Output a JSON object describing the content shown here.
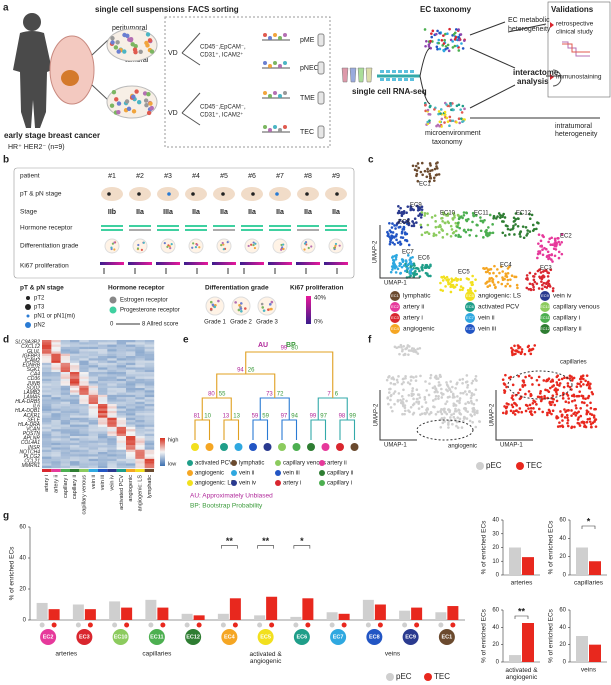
{
  "panel_labels": {
    "a": "a",
    "b": "b",
    "c": "c",
    "d": "d",
    "e": "e",
    "f": "f",
    "g": "g"
  },
  "panel_a": {
    "suspensions_title": "single cell suspensions",
    "peritumoral": "peritumoral",
    "tumoral": "tumoral",
    "cohort": "early stage breast cancer",
    "receptor_status": "HR⁺ HER2⁻ (n=9)",
    "facs_title": "FACS sorting",
    "vd": [
      "VD",
      "VD"
    ],
    "markers": [
      [
        "CD45⁻,EpCAM⁻,",
        "CD31⁺, ICAM2⁺"
      ],
      [
        "CD45⁻,EpCAM⁻,",
        "CD31⁺, ICAM2⁺"
      ]
    ],
    "fractions": [
      "pME",
      "pNEC",
      "TME",
      "TEC"
    ],
    "sequencing": "single cell RNA-seq",
    "taxonomy_title": "EC taxonomy",
    "metabolic": [
      "EC metabolic",
      "heterogeneity"
    ],
    "interactome": [
      "interactome",
      "analysis"
    ],
    "microenvironment": [
      "microenvironment",
      "taxonomy"
    ],
    "intratumoral": [
      "intratumoral",
      "heterogeneity"
    ],
    "validations_title": "Validations",
    "clinical": [
      "retrospective",
      "clinical study"
    ],
    "immunostaining": "immunostaining"
  },
  "panel_b": {
    "row_labels": [
      "patient",
      "pT & pN stage",
      "Stage",
      "Hormone receptor",
      "Differentiation grade",
      "Ki67 proliferation"
    ],
    "patients": [
      "#1",
      "#2",
      "#3",
      "#4",
      "#5",
      "#6",
      "#7",
      "#8",
      "#9"
    ],
    "stages": [
      "IIb",
      "IIa",
      "IIIa",
      "IIa",
      "IIa",
      "IIa",
      "IIa",
      "IIa",
      "IIa"
    ],
    "legend": {
      "stage_title": "pT & pN stage",
      "stage_items": [
        "pT2",
        "pT3",
        "pN1 or pN1(mi)",
        "pN2"
      ],
      "receptor_title": "Hormone receptor",
      "receptor_items": [
        "Estrogen receptor",
        "Progesterone receptor"
      ],
      "allred_min": "0",
      "allred_max": "8 Allred score",
      "grade_title": "Differentiation grade",
      "grades": [
        "Grade 1",
        "Grade 2",
        "Grade 3"
      ],
      "ki67_title": "Ki67 proliferation",
      "ki67_max": "40%",
      "ki67_min": "0%"
    }
  },
  "panel_c": {
    "umap_y": "UMAP-2",
    "umap_x": "UMAP-1",
    "cluster_labels": [
      "EC1",
      "EC2",
      "EC3",
      "EC4",
      "EC5",
      "EC6",
      "EC7",
      "EC8",
      "EC9",
      "EC10",
      "EC11",
      "EC12"
    ],
    "legend": [
      {
        "id": "EC1",
        "name": "lymphatic",
        "color": "#6b4a2e"
      },
      {
        "id": "EC2",
        "name": "artery ii",
        "color": "#e6399b"
      },
      {
        "id": "EC3",
        "name": "artery i",
        "color": "#d9262e"
      },
      {
        "id": "EC4",
        "name": "angiogenic",
        "color": "#f5a623"
      },
      {
        "id": "EC5",
        "name": "angiogenic: LS",
        "color": "#f2e01e"
      },
      {
        "id": "EC6",
        "name": "activated PCV",
        "color": "#1f9e89"
      },
      {
        "id": "EC7",
        "name": "vein ii",
        "color": "#2fa8e0"
      },
      {
        "id": "EC8",
        "name": "vein iii",
        "color": "#2255c4"
      },
      {
        "id": "EC9",
        "name": "vein iv",
        "color": "#2a3a8f"
      },
      {
        "id": "EC10",
        "name": "capillary venous",
        "color": "#8ccb5e"
      },
      {
        "id": "EC11",
        "name": "capillary i",
        "color": "#4caf50"
      },
      {
        "id": "EC12",
        "name": "capillary ii",
        "color": "#2e7d32"
      }
    ]
  },
  "panel_d": {
    "genes": [
      "SLC9A3R2",
      "CXCL12",
      "GLUL",
      "IGFBP3",
      "ICAM2",
      "EDNRB",
      "SGK1",
      "CA4",
      "CD36",
      "JUNB",
      "SOD2",
      "LAMB2",
      "LAMA5",
      "HLA-DRB5",
      "IL6",
      "HLA-DQB1",
      "ACKR1",
      "SELE",
      "HLA-DRA",
      "VCAN",
      "POSTN",
      "APLNR",
      "COL4A1",
      "INSR",
      "NOTCH4",
      "PLCG2",
      "CCL21",
      "MMRN1"
    ],
    "columns": [
      "artery i",
      "artery ii",
      "capillary i",
      "capillary ii",
      "capillary venous",
      "vein ii",
      "vein iii",
      "vein iv",
      "activated PCV",
      "angiogenic",
      "angiogenic: LS",
      "lymphatic"
    ],
    "scale_high": "high",
    "scale_low": "low"
  },
  "panel_e": {
    "au": "AU",
    "bp": "BP",
    "node_values": [
      [
        81,
        10
      ],
      [
        13,
        13
      ],
      [
        59,
        59
      ],
      [
        97,
        94
      ],
      [
        99,
        97
      ],
      [
        98,
        99
      ],
      [
        80,
        55
      ],
      [
        73,
        72
      ],
      [
        7,
        6
      ],
      [
        94,
        26
      ],
      [
        99,
        80
      ]
    ],
    "legend": [
      {
        "name": "activated PCV",
        "color": "#1f9e89"
      },
      {
        "name": "lymphatic",
        "color": "#6b4a2e"
      },
      {
        "name": "capillary venous",
        "color": "#8ccb5e"
      },
      {
        "name": "artery ii",
        "color": "#e6399b"
      },
      {
        "name": "angiogenic",
        "color": "#f5a623"
      },
      {
        "name": "vein ii",
        "color": "#2fa8e0"
      },
      {
        "name": "vein iii",
        "color": "#2255c4"
      },
      {
        "name": "capillary ii",
        "color": "#2e7d32"
      },
      {
        "name": "angiogenic: LS",
        "color": "#f2e01e"
      },
      {
        "name": "vein iv",
        "color": "#2a3a8f"
      },
      {
        "name": "artery i",
        "color": "#d9262e"
      },
      {
        "name": "capillary i",
        "color": "#4caf50"
      }
    ],
    "au_note": "AU: Approximately Unbiased",
    "bp_note": "BP: Bootstrap Probability"
  },
  "panel_f": {
    "umap_y": "UMAP-2",
    "umap_x": "UMAP-1",
    "angiogenic": "angiogenic",
    "capillaries": "capillaries",
    "legend": [
      {
        "name": "pEC",
        "color": "#cfcfcf"
      },
      {
        "name": "TEC",
        "color": "#e8281e"
      }
    ]
  },
  "chart_data": [
    {
      "type": "bar",
      "ylabel": "% of enriched ECs",
      "ylim": [
        0,
        60
      ],
      "yticks": [
        0,
        20,
        40,
        60
      ],
      "categories": [
        "EC2",
        "EC3",
        "EC10",
        "EC11",
        "EC12",
        "EC4",
        "EC5",
        "EC6",
        "EC7",
        "EC8",
        "EC9",
        "EC1"
      ],
      "category_colors": [
        "#e6399b",
        "#d9262e",
        "#8ccb5e",
        "#4caf50",
        "#2e7d32",
        "#f5a623",
        "#f2e01e",
        "#1f9e89",
        "#2fa8e0",
        "#2255c4",
        "#2a3a8f",
        "#6b4a2e"
      ],
      "series": [
        {
          "name": "pEC",
          "color": "#cfcfcf",
          "values": [
            11,
            10,
            12,
            13,
            4,
            4,
            3,
            2,
            5,
            13,
            6,
            5
          ]
        },
        {
          "name": "TEC",
          "color": "#e8281e",
          "values": [
            7,
            7,
            8,
            8,
            3,
            14,
            15,
            14,
            4,
            10,
            8,
            9
          ]
        }
      ],
      "group_labels": [
        "arteries",
        "capillaries",
        "activated &\nangiogenic",
        "veins"
      ],
      "significance": [
        "**",
        "**",
        "*"
      ]
    },
    {
      "type": "bar",
      "xlabel": "arteries",
      "ylabel": "% of enriched ECs",
      "ylim": [
        0,
        40
      ],
      "yticks": [
        0,
        10,
        20,
        30,
        40
      ],
      "series": [
        {
          "color": "#cfcfcf",
          "values": [
            20
          ]
        },
        {
          "color": "#e8281e",
          "values": [
            13
          ]
        }
      ]
    },
    {
      "type": "bar",
      "xlabel": "capillaries",
      "ylabel": "% of enriched ECs",
      "ylim": [
        0,
        60
      ],
      "yticks": [
        0,
        20,
        40,
        60
      ],
      "series": [
        {
          "color": "#cfcfcf",
          "values": [
            30
          ]
        },
        {
          "color": "#e8281e",
          "values": [
            15
          ]
        }
      ],
      "significance": "*"
    },
    {
      "type": "bar",
      "xlabel": "activated &\nangiogenic",
      "ylabel": "% of enriched ECs",
      "ylim": [
        0,
        60
      ],
      "yticks": [
        0,
        20,
        40,
        60
      ],
      "series": [
        {
          "color": "#cfcfcf",
          "values": [
            8
          ]
        },
        {
          "color": "#e8281e",
          "values": [
            45
          ]
        }
      ],
      "significance": "**"
    },
    {
      "type": "bar",
      "xlabel": "veins",
      "ylabel": "% of enriched ECs",
      "ylim": [
        0,
        60
      ],
      "yticks": [
        0,
        20,
        40,
        60
      ],
      "series": [
        {
          "color": "#cfcfcf",
          "values": [
            30
          ]
        },
        {
          "color": "#e8281e",
          "values": [
            20
          ]
        }
      ]
    }
  ]
}
